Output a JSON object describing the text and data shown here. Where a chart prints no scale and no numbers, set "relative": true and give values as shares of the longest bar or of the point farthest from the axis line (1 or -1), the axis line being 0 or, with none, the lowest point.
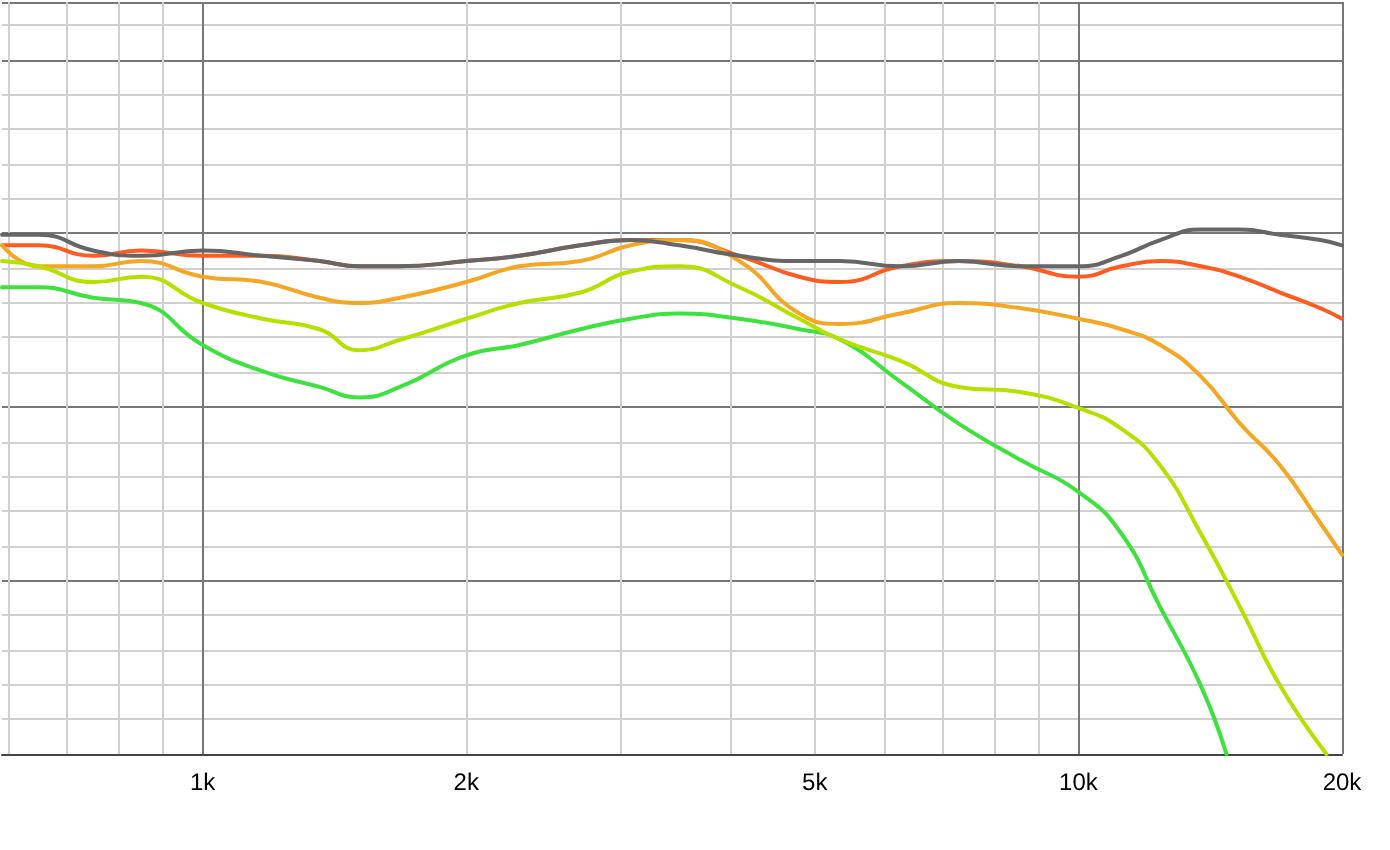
{
  "chart_data": {
    "type": "line",
    "relative": true,
    "log": "x",
    "grid": true,
    "marker": "none",
    "line_style": "solid",
    "xlim": [
      590,
      20000
    ],
    "xticks": [
      {
        "value": 1000,
        "label": "1k"
      },
      {
        "value": 2000,
        "label": "2k"
      },
      {
        "value": 5000,
        "label": "5k"
      },
      {
        "value": 10000,
        "label": "10k"
      },
      {
        "value": 20000,
        "label": "20k"
      }
    ],
    "x": [
      590,
      650,
      750,
      850,
      1000,
      1170,
      1360,
      1510,
      1680,
      2000,
      2300,
      2700,
      3080,
      3500,
      4100,
      4800,
      5350,
      6260,
      7300,
      8600,
      10000,
      11200,
      12400,
      13800,
      15300,
      17000,
      18900,
      20000
    ],
    "series": [
      {
        "color": "#ff5a1f",
        "values": [
          0.97,
          0.97,
          0.95,
          0.96,
          0.95,
          0.95,
          0.94,
          0.93,
          0.93,
          0.94,
          0.95,
          0.97,
          0.98,
          0.98,
          0.95,
          0.91,
          0.9,
          0.93,
          0.94,
          0.93,
          0.91,
          0.93,
          0.94,
          0.93,
          0.91,
          0.88,
          0.85,
          0.83
        ]
      },
      {
        "color": "#f5a623",
        "values": [
          0.97,
          0.93,
          0.93,
          0.94,
          0.91,
          0.9,
          0.87,
          0.86,
          0.87,
          0.9,
          0.93,
          0.94,
          0.97,
          0.98,
          0.94,
          0.84,
          0.82,
          0.84,
          0.86,
          0.85,
          0.83,
          0.81,
          0.78,
          0.72,
          0.63,
          0.55,
          0.44,
          0.38
        ]
      },
      {
        "color": "#3ee23e",
        "x": [
          590,
          650,
          750,
          850,
          1000,
          1170,
          1360,
          1510,
          1680,
          2000,
          2300,
          2700,
          3080,
          3500,
          4100,
          4800,
          5350,
          6260,
          7300,
          8600,
          10000,
          11200,
          12400,
          13800,
          14760
        ],
        "values": [
          0.89,
          0.89,
          0.87,
          0.86,
          0.78,
          0.73,
          0.7,
          0.68,
          0.7,
          0.76,
          0.78,
          0.81,
          0.83,
          0.84,
          0.83,
          0.81,
          0.79,
          0.71,
          0.63,
          0.56,
          0.5,
          0.42,
          0.28,
          0.13,
          0
        ]
      },
      {
        "color": "#b5e000",
        "x": [
          590,
          650,
          750,
          850,
          1000,
          1170,
          1360,
          1510,
          1680,
          2000,
          2300,
          2700,
          3080,
          3500,
          4100,
          4800,
          5350,
          6260,
          7300,
          8600,
          10000,
          11200,
          12400,
          13800,
          15300,
          17000,
          19200
        ],
        "values": [
          0.94,
          0.93,
          0.9,
          0.91,
          0.86,
          0.83,
          0.81,
          0.77,
          0.79,
          0.83,
          0.86,
          0.88,
          0.92,
          0.93,
          0.89,
          0.83,
          0.79,
          0.75,
          0.7,
          0.69,
          0.66,
          0.62,
          0.55,
          0.42,
          0.28,
          0.13,
          0
        ]
      },
      {
        "color": "#666666",
        "values": [
          0.99,
          0.99,
          0.96,
          0.95,
          0.96,
          0.95,
          0.94,
          0.93,
          0.93,
          0.94,
          0.95,
          0.97,
          0.98,
          0.97,
          0.95,
          0.94,
          0.94,
          0.93,
          0.94,
          0.93,
          0.93,
          0.95,
          0.98,
          1,
          1,
          0.99,
          0.98,
          0.97
        ]
      }
    ]
  }
}
